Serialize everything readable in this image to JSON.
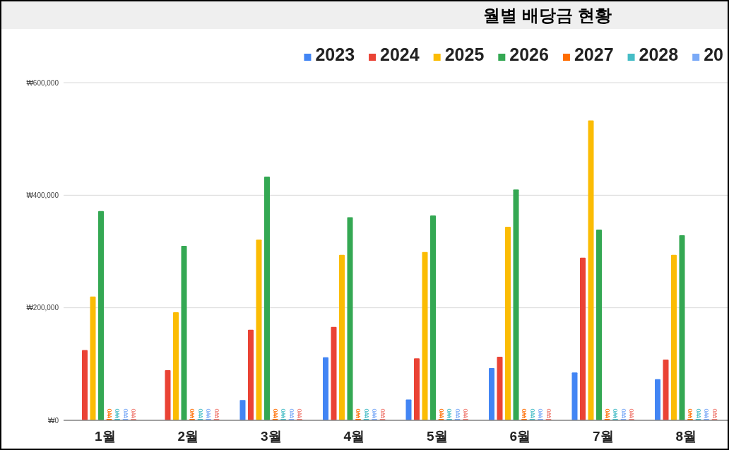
{
  "chart_data": {
    "type": "bar",
    "title": "월별 배당금 현황",
    "categories": [
      "1월",
      "2월",
      "3월",
      "4월",
      "5월",
      "6월",
      "7월",
      "8월"
    ],
    "series": [
      {
        "name": "2023",
        "color": "#4285f4",
        "values": [
          null,
          null,
          36000,
          112000,
          37000,
          93000,
          85000,
          73000
        ]
      },
      {
        "name": "2024",
        "color": "#ea4335",
        "values": [
          125000,
          89000,
          161000,
          166000,
          110000,
          113000,
          289000,
          108000
        ]
      },
      {
        "name": "2025",
        "color": "#fbbc04",
        "values": [
          220000,
          192000,
          321000,
          294000,
          299000,
          344000,
          533000,
          294000
        ]
      },
      {
        "name": "2026",
        "color": "#34a853",
        "values": [
          372000,
          310000,
          433000,
          361000,
          364000,
          410000,
          339000,
          329000
        ]
      },
      {
        "name": "2027",
        "color": "#ff6d01",
        "values": [
          0,
          0,
          0,
          0,
          0,
          0,
          0,
          0
        ],
        "value_labels": [
          "₩0",
          "₩0",
          "₩0",
          "₩0",
          "₩0",
          "₩0",
          "₩0",
          "₩0"
        ]
      },
      {
        "name": "2028",
        "color": "#46bdc6",
        "values": [
          0,
          0,
          0,
          0,
          0,
          0,
          0,
          0
        ],
        "value_labels": [
          "₩0",
          "₩0",
          "₩0",
          "₩0",
          "₩0",
          "₩0",
          "₩0",
          "₩0"
        ]
      },
      {
        "name": "20",
        "color": "#7baaf7",
        "values": [
          0,
          0,
          0,
          0,
          0,
          0,
          0,
          0
        ],
        "value_labels": [
          "₩0",
          "₩0",
          "₩0",
          "₩0",
          "₩0",
          "₩0",
          "₩0",
          "₩0"
        ]
      },
      {
        "color": "#f07b72",
        "values": [
          0,
          0,
          0,
          0,
          0,
          0,
          0,
          0
        ],
        "value_labels": [
          "₩0",
          "₩0",
          "₩0",
          "₩0",
          "₩0",
          "₩0",
          "₩0",
          "₩0"
        ]
      }
    ],
    "ylim": [
      0,
      600000
    ],
    "yticks": [
      {
        "value": 0,
        "label": "₩0"
      },
      {
        "value": 200000,
        "label": "₩200,000"
      },
      {
        "value": 400000,
        "label": "₩400,000"
      },
      {
        "value": 600000,
        "label": "₩600,000"
      }
    ],
    "grid": "y",
    "legend": "top right"
  }
}
